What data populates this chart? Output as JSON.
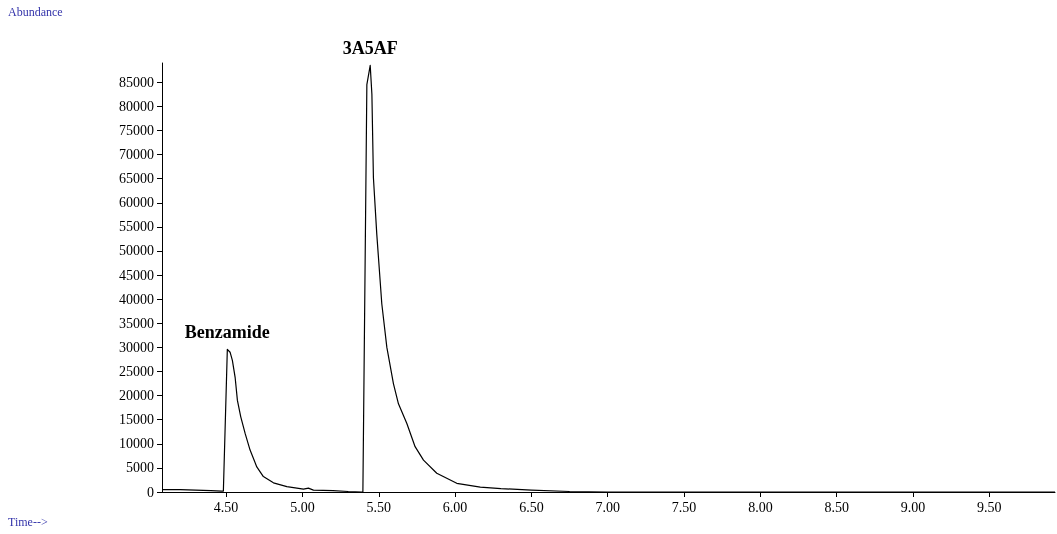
{
  "chart_data": {
    "type": "line",
    "x": [
      4.08,
      4.2,
      4.3,
      4.4,
      4.47,
      4.482,
      4.508,
      4.526,
      4.541,
      4.559,
      4.574,
      4.596,
      4.625,
      4.657,
      4.701,
      4.744,
      4.81,
      4.898,
      5.007,
      5.039,
      5.072,
      5.2,
      5.3,
      5.39,
      5.396,
      5.422,
      5.444,
      5.455,
      5.465,
      5.487,
      5.52,
      5.553,
      5.596,
      5.629,
      5.684,
      5.738,
      5.793,
      5.88,
      6.011,
      6.165,
      6.3,
      6.5,
      6.75,
      7.0,
      9.93
    ],
    "series": [
      {
        "color": "#000000",
        "values": [
          500,
          500,
          400,
          300,
          200,
          200,
          29600,
          29000,
          27300,
          23800,
          19000,
          15600,
          12100,
          8700,
          5200,
          3200,
          1900,
          1100,
          600,
          800,
          400,
          300,
          100,
          0,
          0,
          84500,
          88500,
          82500,
          65200,
          53500,
          39000,
          30000,
          22500,
          18300,
          14200,
          9400,
          6600,
          3900,
          1800,
          1000,
          700,
          400,
          100,
          0,
          0
        ]
      }
    ],
    "xlim": [
      4.08,
      9.93
    ],
    "xticks": [
      {
        "value": 4.5,
        "label": "4.50"
      },
      {
        "value": 5.0,
        "label": "5.00"
      },
      {
        "value": 5.5,
        "label": "5.50"
      },
      {
        "value": 6.0,
        "label": "6.00"
      },
      {
        "value": 6.5,
        "label": "6.50"
      },
      {
        "value": 7.0,
        "label": "7.00"
      },
      {
        "value": 7.5,
        "label": "7.50"
      },
      {
        "value": 8.0,
        "label": "8.00"
      },
      {
        "value": 8.5,
        "label": "8.50"
      },
      {
        "value": 9.0,
        "label": "9.00"
      },
      {
        "value": 9.5,
        "label": "9.50"
      }
    ],
    "ylim": [
      0,
      89000
    ],
    "yticks": [
      0,
      5000,
      10000,
      15000,
      20000,
      25000,
      30000,
      35000,
      40000,
      45000,
      50000,
      55000,
      60000,
      65000,
      70000,
      75000,
      80000,
      85000
    ],
    "annotations": [
      "Abundance",
      "Time-->",
      {
        "text": "Benzamide",
        "x": 4.508,
        "y": 29600
      },
      {
        "text": "3A5AF",
        "x": 5.444,
        "y": 88500
      }
    ],
    "grid": false,
    "marker": "none",
    "line_style": "solid"
  }
}
